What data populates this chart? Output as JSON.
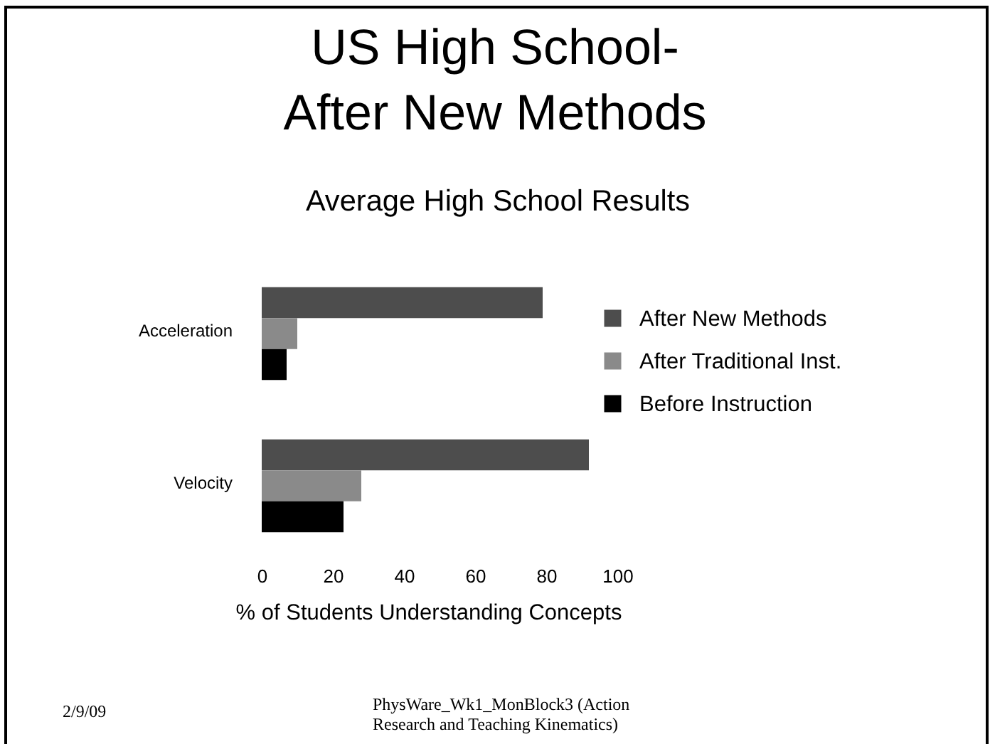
{
  "chart_data": {
    "type": "bar",
    "orientation": "horizontal",
    "title": "US High School-\nAfter New Methods",
    "subtitle": "Average High School Results",
    "xlabel": "% of Students Understanding Concepts",
    "categories": [
      "Acceleration",
      "Velocity"
    ],
    "series": [
      {
        "name": "After New Methods",
        "color": "#4d4d4d",
        "values": [
          79,
          92
        ]
      },
      {
        "name": "After Traditional Inst.",
        "color": "#8a8a8a",
        "values": [
          10,
          28
        ]
      },
      {
        "name": "Before Instruction",
        "color": "#000000",
        "values": [
          7,
          23
        ]
      }
    ],
    "xlim": [
      0,
      100
    ],
    "xticks": [
      0,
      20,
      40,
      60,
      80,
      100
    ],
    "legend": "right",
    "annotations": [
      "2/9/09",
      "PhysWare_Wk1_MonBlock3 (Action Research and Teaching Kinematics)"
    ]
  }
}
